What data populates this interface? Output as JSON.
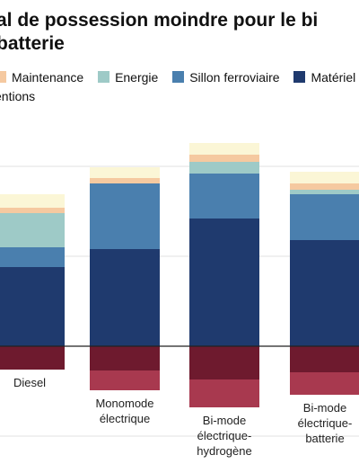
{
  "title_lines": [
    "al de possession moindre pour le bi",
    "batterie"
  ],
  "legend": [
    {
      "label": "Maintenance",
      "color": "#f5c9a0"
    },
    {
      "label": "Energie",
      "color": "#9ecac7"
    },
    {
      "label": "Sillon ferroviaire",
      "color": "#4a7fae"
    },
    {
      "label": "Matériel rou",
      "color": "#1f3a6e"
    },
    {
      "label": "entions",
      "color": "#fbf6d6"
    }
  ],
  "chart_data": {
    "type": "bar",
    "stacked": true,
    "categories": [
      "Diesel",
      "Monomode électrique",
      "Bi-mode électrique-hydrogène",
      "Bi-mode électrique-batterie"
    ],
    "category_lines": [
      [
        "Diesel"
      ],
      [
        "Monomode",
        "électrique"
      ],
      [
        "Bi-mode",
        "électrique-",
        "hydrogène"
      ],
      [
        "Bi-mode",
        "électrique-",
        "batterie"
      ]
    ],
    "positive_series": [
      {
        "name": "Matériel rou",
        "color": "#1f3a6e",
        "values": [
          88,
          108,
          142,
          118
        ]
      },
      {
        "name": "Sillon ferroviaire",
        "color": "#4a7fae",
        "values": [
          22,
          73,
          50,
          51
        ]
      },
      {
        "name": "Energie",
        "color": "#9ecac7",
        "values": [
          38,
          0,
          13,
          5
        ]
      },
      {
        "name": "Maintenance",
        "color": "#f5c9a0",
        "values": [
          6,
          6,
          8,
          7
        ]
      },
      {
        "name": "entions",
        "color": "#fbf6d6",
        "values": [
          15,
          12,
          13,
          13
        ]
      }
    ],
    "negative_series": [
      {
        "name": "",
        "color": "#6e1a2e",
        "values": [
          -26,
          -27,
          -37,
          -29
        ]
      },
      {
        "name": "",
        "color": "#a8394f",
        "values": [
          0,
          -22,
          -31,
          -25
        ]
      }
    ],
    "ylim": [
      -100,
      250
    ],
    "grid": true
  }
}
